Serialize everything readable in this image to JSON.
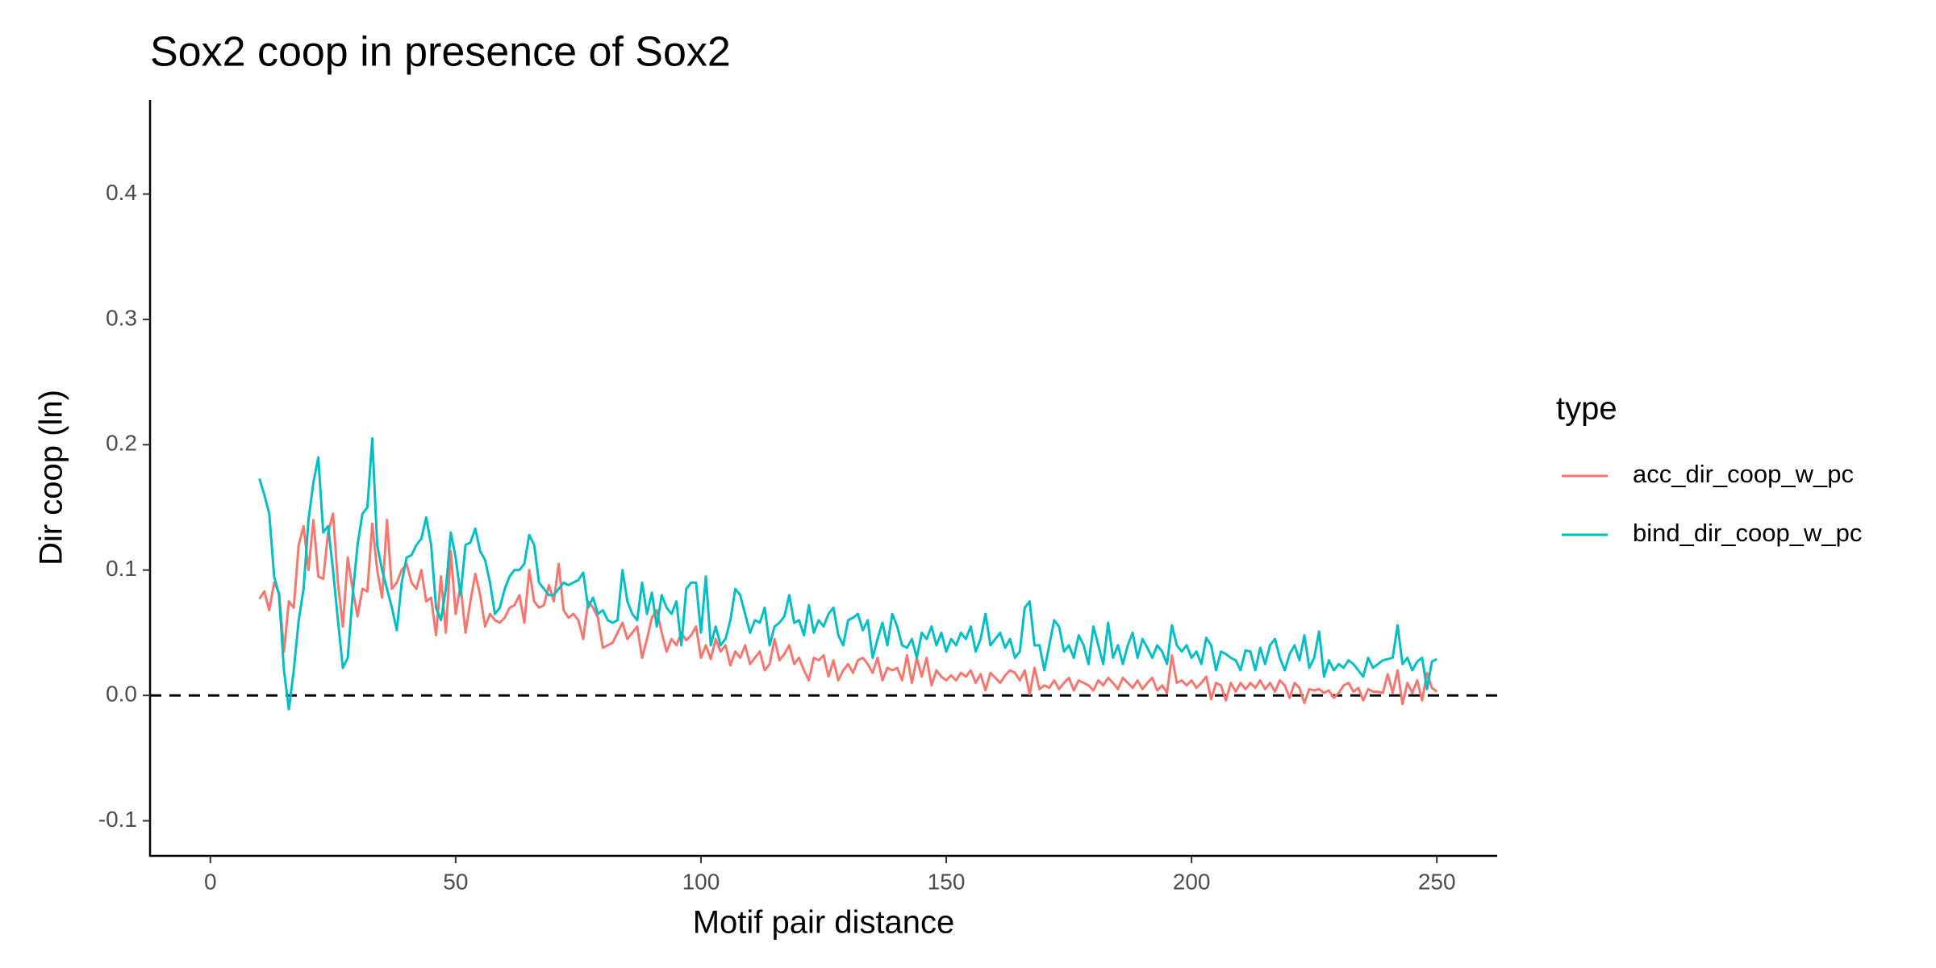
{
  "chart_data": {
    "type": "line",
    "title": "Sox2 coop in presence of Sox2",
    "x_label": "Motif pair distance",
    "y_label": "Dir coop (ln)",
    "legend_title": "type",
    "legend_position": "right",
    "reference_line": 0,
    "xlim": [
      -12.3,
      262.3
    ],
    "ylim": [
      -0.128,
      0.475
    ],
    "xticks": [
      0,
      50,
      100,
      150,
      200,
      250
    ],
    "yticks": [
      -0.1,
      {
        "value": 0,
        "label": "0.0"
      },
      0.1,
      0.2,
      0.3,
      0.4
    ],
    "grid": false,
    "x": [
      10,
      11,
      12,
      13,
      14,
      15,
      16,
      17,
      18,
      19,
      20,
      21,
      22,
      23,
      24,
      25,
      26,
      27,
      28,
      29,
      30,
      31,
      32,
      33,
      34,
      35,
      36,
      37,
      38,
      39,
      40,
      41,
      42,
      43,
      44,
      45,
      46,
      47,
      48,
      49,
      50,
      51,
      52,
      53,
      54,
      55,
      56,
      57,
      58,
      59,
      60,
      61,
      62,
      63,
      64,
      65,
      66,
      67,
      68,
      69,
      70,
      71,
      72,
      73,
      74,
      75,
      76,
      77,
      78,
      79,
      80,
      81,
      82,
      83,
      84,
      85,
      86,
      87,
      88,
      89,
      90,
      91,
      92,
      93,
      94,
      95,
      96,
      97,
      98,
      99,
      100,
      101,
      102,
      103,
      104,
      105,
      106,
      107,
      108,
      109,
      110,
      111,
      112,
      113,
      114,
      115,
      116,
      117,
      118,
      119,
      120,
      121,
      122,
      123,
      124,
      125,
      126,
      127,
      128,
      129,
      130,
      131,
      132,
      133,
      134,
      135,
      136,
      137,
      138,
      139,
      140,
      141,
      142,
      143,
      144,
      145,
      146,
      147,
      148,
      149,
      150,
      151,
      152,
      153,
      154,
      155,
      156,
      157,
      158,
      159,
      160,
      161,
      162,
      163,
      164,
      165,
      166,
      167,
      168,
      169,
      170,
      171,
      172,
      173,
      174,
      175,
      176,
      177,
      178,
      179,
      180,
      181,
      182,
      183,
      184,
      185,
      186,
      187,
      188,
      189,
      190,
      191,
      192,
      193,
      194,
      195,
      196,
      197,
      198,
      199,
      200,
      201,
      202,
      203,
      204,
      205,
      206,
      207,
      208,
      209,
      210,
      211,
      212,
      213,
      214,
      215,
      216,
      217,
      218,
      219,
      220,
      221,
      222,
      223,
      224,
      225,
      226,
      227,
      228,
      229,
      230,
      231,
      232,
      233,
      234,
      235,
      236,
      237,
      238,
      239,
      240,
      241,
      242,
      243,
      244,
      245,
      246,
      247,
      248,
      249,
      250
    ],
    "series": [
      {
        "name": "acc_dir_coop_w_pc",
        "color": "#F8766D",
        "values": [
          0.077,
          0.083,
          0.068,
          0.09,
          0.082,
          0.035,
          0.075,
          0.07,
          0.12,
          0.135,
          0.1,
          0.14,
          0.095,
          0.093,
          0.13,
          0.145,
          0.09,
          0.055,
          0.11,
          0.085,
          0.063,
          0.085,
          0.083,
          0.137,
          0.1,
          0.078,
          0.14,
          0.085,
          0.09,
          0.1,
          0.105,
          0.09,
          0.085,
          0.1,
          0.075,
          0.078,
          0.048,
          0.095,
          0.05,
          0.115,
          0.065,
          0.088,
          0.05,
          0.075,
          0.097,
          0.08,
          0.055,
          0.065,
          0.06,
          0.058,
          0.062,
          0.07,
          0.072,
          0.08,
          0.058,
          0.1,
          0.075,
          0.07,
          0.072,
          0.088,
          0.075,
          0.105,
          0.068,
          0.062,
          0.065,
          0.06,
          0.045,
          0.075,
          0.07,
          0.062,
          0.038,
          0.04,
          0.042,
          0.05,
          0.058,
          0.045,
          0.05,
          0.055,
          0.03,
          0.045,
          0.062,
          0.068,
          0.05,
          0.035,
          0.045,
          0.04,
          0.05,
          0.044,
          0.048,
          0.055,
          0.03,
          0.04,
          0.029,
          0.045,
          0.035,
          0.04,
          0.024,
          0.035,
          0.03,
          0.04,
          0.025,
          0.03,
          0.035,
          0.02,
          0.025,
          0.045,
          0.028,
          0.033,
          0.04,
          0.025,
          0.03,
          0.02,
          0.012,
          0.03,
          0.028,
          0.032,
          0.015,
          0.028,
          0.012,
          0.02,
          0.025,
          0.018,
          0.028,
          0.03,
          0.025,
          0.018,
          0.03,
          0.012,
          0.022,
          0.02,
          0.022,
          0.012,
          0.032,
          0.01,
          0.03,
          0.015,
          0.03,
          0.008,
          0.02,
          0.015,
          0.012,
          0.016,
          0.012,
          0.018,
          0.015,
          0.02,
          0.01,
          0.017,
          0.004,
          0.018,
          0.014,
          0.01,
          0.016,
          0.02,
          0.018,
          0.012,
          0.02,
          0.001,
          0.022,
          0.005,
          0.008,
          0.006,
          0.012,
          0.005,
          0.01,
          0.014,
          0.004,
          0.012,
          0.01,
          0.008,
          0.004,
          0.012,
          0.008,
          0.014,
          0.01,
          0.005,
          0.014,
          0.01,
          0.006,
          0.012,
          0.005,
          0.01,
          0.014,
          0.004,
          0.008,
          0.002,
          0.032,
          0.01,
          0.012,
          0.008,
          0.012,
          0.006,
          0.01,
          0.015,
          -0.003,
          0.01,
          0.008,
          -0.004,
          0.01,
          0.003,
          0.01,
          0.005,
          0.01,
          0.006,
          0.012,
          0.005,
          0.01,
          0.003,
          0.012,
          0.008,
          -0.002,
          0.01,
          0.006,
          -0.006,
          0.005,
          0.004,
          0.005,
          0.002,
          0.004,
          -0.002,
          0.002,
          0.008,
          0.01,
          0.003,
          0.006,
          -0.004,
          0.005,
          0.003,
          0.003,
          0.002,
          0.017,
          0.002,
          0.02,
          -0.007,
          0.01,
          0.002,
          0.012,
          -0.004,
          0.018,
          0.006,
          0.003
        ]
      },
      {
        "name": "bind_dir_coop_w_pc",
        "color": "#00BFC4",
        "values": [
          0.173,
          0.16,
          0.145,
          0.095,
          0.08,
          0.02,
          -0.011,
          0.02,
          0.06,
          0.085,
          0.14,
          0.17,
          0.19,
          0.13,
          0.135,
          0.1,
          0.06,
          0.022,
          0.03,
          0.08,
          0.12,
          0.145,
          0.15,
          0.205,
          0.12,
          0.1,
          0.085,
          0.07,
          0.052,
          0.09,
          0.11,
          0.112,
          0.12,
          0.125,
          0.142,
          0.12,
          0.07,
          0.06,
          0.085,
          0.13,
          0.11,
          0.08,
          0.12,
          0.122,
          0.133,
          0.115,
          0.108,
          0.09,
          0.065,
          0.07,
          0.085,
          0.095,
          0.1,
          0.1,
          0.105,
          0.128,
          0.12,
          0.09,
          0.085,
          0.08,
          0.08,
          0.085,
          0.09,
          0.088,
          0.09,
          0.092,
          0.098,
          0.07,
          0.078,
          0.065,
          0.068,
          0.06,
          0.058,
          0.06,
          0.1,
          0.075,
          0.065,
          0.06,
          0.09,
          0.065,
          0.082,
          0.055,
          0.08,
          0.07,
          0.065,
          0.075,
          0.04,
          0.085,
          0.09,
          0.09,
          0.05,
          0.095,
          0.04,
          0.055,
          0.04,
          0.045,
          0.06,
          0.085,
          0.08,
          0.065,
          0.05,
          0.06,
          0.058,
          0.07,
          0.04,
          0.055,
          0.058,
          0.063,
          0.08,
          0.058,
          0.06,
          0.048,
          0.072,
          0.05,
          0.06,
          0.055,
          0.065,
          0.07,
          0.048,
          0.04,
          0.06,
          0.062,
          0.065,
          0.052,
          0.06,
          0.03,
          0.045,
          0.058,
          0.04,
          0.065,
          0.055,
          0.04,
          0.038,
          0.045,
          0.03,
          0.05,
          0.045,
          0.055,
          0.04,
          0.05,
          0.035,
          0.045,
          0.04,
          0.05,
          0.045,
          0.055,
          0.035,
          0.045,
          0.065,
          0.04,
          0.045,
          0.05,
          0.038,
          0.045,
          0.03,
          0.035,
          0.07,
          0.075,
          0.04,
          0.04,
          0.02,
          0.04,
          0.06,
          0.055,
          0.035,
          0.04,
          0.03,
          0.048,
          0.04,
          0.025,
          0.055,
          0.04,
          0.025,
          0.058,
          0.03,
          0.04,
          0.025,
          0.04,
          0.05,
          0.03,
          0.045,
          0.038,
          0.03,
          0.04,
          0.035,
          0.025,
          0.056,
          0.04,
          0.035,
          0.04,
          0.03,
          0.035,
          0.025,
          0.046,
          0.04,
          0.02,
          0.035,
          0.033,
          0.03,
          0.028,
          0.02,
          0.036,
          0.035,
          0.02,
          0.038,
          0.025,
          0.04,
          0.045,
          0.03,
          0.02,
          0.033,
          0.04,
          0.028,
          0.048,
          0.022,
          0.03,
          0.051,
          0.015,
          0.028,
          0.02,
          0.025,
          0.022,
          0.028,
          0.025,
          0.02,
          0.015,
          0.03,
          0.022,
          0.025,
          0.028,
          0.029,
          0.03,
          0.056,
          0.025,
          0.03,
          0.02,
          0.027,
          0.03,
          0.005,
          0.027,
          0.029
        ]
      }
    ]
  }
}
